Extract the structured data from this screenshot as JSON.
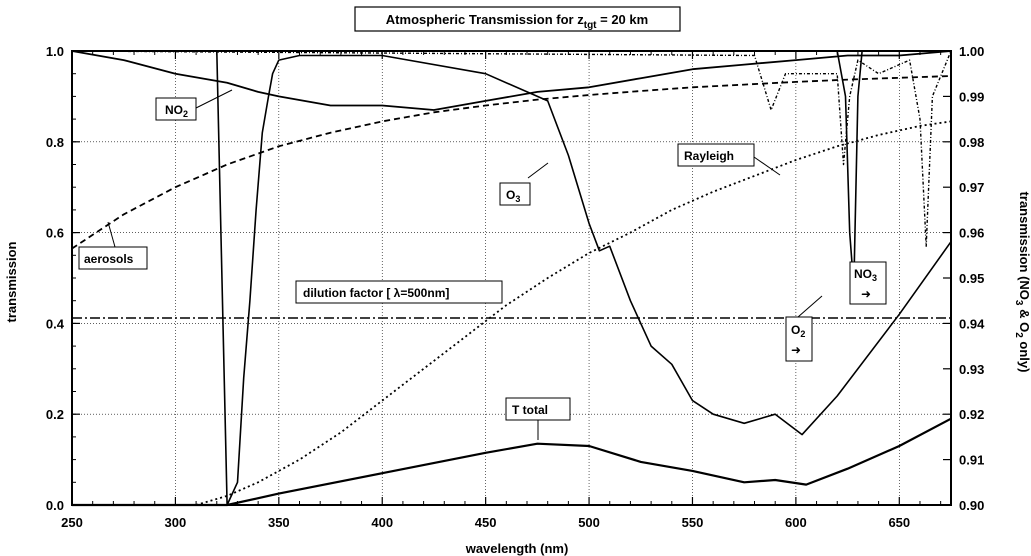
{
  "chart_data": {
    "type": "line",
    "title": "Atmospheric Transmission for z",
    "title_sub": "tgt",
    "title_rest": " = 20 km",
    "xlabel": "wavelength (nm)",
    "ylabel": "transmission",
    "y2label": "transmission (NO",
    "y2label_sub1": "3",
    "y2label_mid": " & O",
    "y2label_sub2": "2",
    "y2label_end": " only)",
    "xlim": [
      250,
      675
    ],
    "ylim": [
      0,
      1
    ],
    "y2lim": [
      0.9,
      1.0
    ],
    "grid": true,
    "x_ticks": [
      "250",
      "300",
      "350",
      "400",
      "450",
      "500",
      "550",
      "600",
      "650"
    ],
    "y_ticks": [
      "0.0",
      "0.2",
      "0.4",
      "0.6",
      "0.8",
      "1.0"
    ],
    "y2_ticks": [
      "0.90",
      "0.91",
      "0.92",
      "0.93",
      "0.94",
      "0.95",
      "0.96",
      "0.97",
      "0.98",
      "0.99",
      "1.00"
    ],
    "series": [
      {
        "name": "aerosols",
        "x": [
          250,
          275,
          300,
          325,
          350,
          375,
          400,
          425,
          450,
          475,
          500,
          525,
          550,
          575,
          600,
          625,
          650,
          675
        ],
        "values": [
          0.565,
          0.64,
          0.7,
          0.75,
          0.79,
          0.82,
          0.845,
          0.865,
          0.88,
          0.893,
          0.903,
          0.912,
          0.92,
          0.926,
          0.932,
          0.937,
          0.941,
          0.945
        ]
      },
      {
        "name": "Rayleigh",
        "x": [
          310,
          325,
          340,
          360,
          380,
          400,
          420,
          440,
          460,
          480,
          500,
          520,
          540,
          560,
          580,
          600,
          620,
          640,
          660,
          675
        ],
        "values": [
          0.0,
          0.02,
          0.05,
          0.1,
          0.16,
          0.23,
          0.3,
          0.37,
          0.44,
          0.5,
          0.555,
          0.6,
          0.65,
          0.69,
          0.725,
          0.76,
          0.79,
          0.815,
          0.835,
          0.845
        ]
      },
      {
        "name": "O3",
        "x": [
          250,
          320,
          325,
          330,
          333,
          336,
          339,
          342,
          345,
          347,
          350,
          360,
          400,
          450,
          480,
          490,
          500,
          505,
          510,
          520,
          530,
          540,
          550,
          560,
          575,
          590,
          603,
          620,
          650,
          675
        ],
        "values": [
          1.0,
          1.0,
          0.0,
          0.05,
          0.28,
          0.45,
          0.65,
          0.82,
          0.9,
          0.95,
          0.98,
          0.99,
          0.99,
          0.95,
          0.89,
          0.77,
          0.62,
          0.56,
          0.57,
          0.45,
          0.35,
          0.31,
          0.23,
          0.2,
          0.18,
          0.2,
          0.155,
          0.24,
          0.42,
          0.58
        ]
      },
      {
        "name": "T total",
        "x": [
          250,
          320,
          325,
          350,
          400,
          450,
          475,
          500,
          525,
          550,
          575,
          590,
          605,
          625,
          650,
          675
        ],
        "values": [
          0.0,
          0.0,
          0.0,
          0.025,
          0.07,
          0.115,
          0.135,
          0.13,
          0.095,
          0.075,
          0.05,
          0.055,
          0.045,
          0.08,
          0.13,
          0.19
        ]
      },
      {
        "name": "dilution factor [ λ=500nm]",
        "x": [
          250,
          675
        ],
        "values": [
          0.412,
          0.412
        ]
      },
      {
        "name": "NO2",
        "axis": "right",
        "x": [
          250,
          275,
          300,
          325,
          340,
          350,
          375,
          400,
          425,
          450,
          475,
          500,
          525,
          550,
          575,
          600,
          625,
          650,
          675
        ],
        "values": [
          1.0,
          0.998,
          0.995,
          0.993,
          0.991,
          0.99,
          0.988,
          0.988,
          0.987,
          0.989,
          0.991,
          0.992,
          0.994,
          0.996,
          0.997,
          0.998,
          0.999,
          0.999,
          1.0
        ]
      },
      {
        "name": "NO3",
        "axis": "right",
        "x": [
          250,
          580,
          588,
          595,
          620,
          623,
          626,
          630,
          640,
          655,
          660,
          663,
          666,
          675
        ],
        "values": [
          1.0,
          0.999,
          0.987,
          0.995,
          0.995,
          0.975,
          0.99,
          0.998,
          0.995,
          0.998,
          0.985,
          0.957,
          0.99,
          1.0
        ]
      },
      {
        "name": "O2",
        "axis": "right",
        "x": [
          250,
          620,
          624,
          626,
          628,
          630,
          632,
          675
        ],
        "values": [
          1.0,
          1.0,
          0.99,
          0.96,
          0.948,
          0.99,
          1.0,
          1.0
        ]
      }
    ],
    "annotations": {
      "no2": "NO",
      "no2_sub": "2",
      "aerosols": "aerosols",
      "o3": "O",
      "o3_sub": "3",
      "rayleigh": "Rayleigh",
      "dilution": "dilution factor [ λ=500nm]",
      "ttotal": "T  total",
      "o2": "O",
      "o2_sub": "2",
      "no3": "NO",
      "no3_sub": "3",
      "arrow": "➜"
    }
  }
}
